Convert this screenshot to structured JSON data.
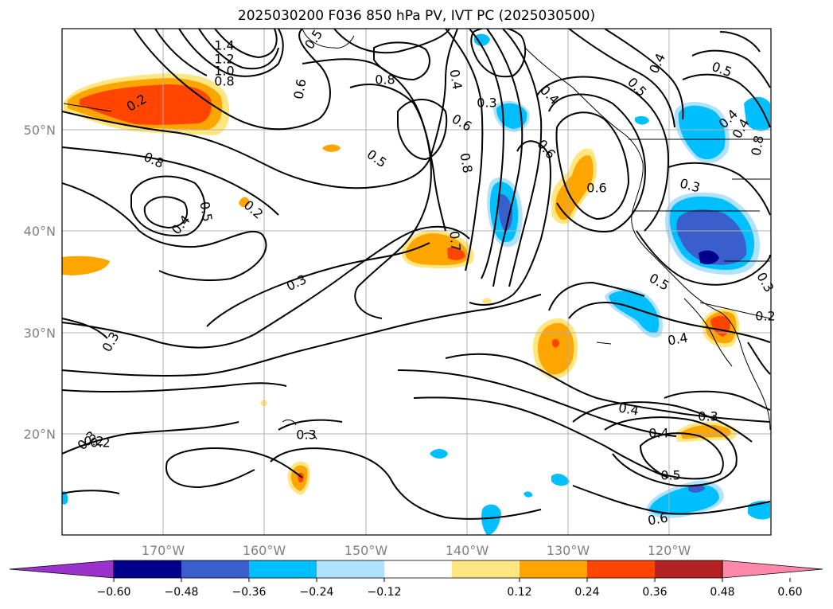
{
  "title": "2025030200 F036 850 hPa PV, IVT PC (2025030500)",
  "map": {
    "lat_labels": [
      "50°N",
      "40°N",
      "30°N",
      "20°N"
    ],
    "lon_labels": [
      "170°W",
      "160°W",
      "150°W",
      "140°W",
      "130°W",
      "120°W"
    ],
    "grid": true,
    "coastlines": true
  },
  "colorbar": {
    "orientation": "horizontal",
    "extend": "both",
    "ticks": [
      "−0.60",
      "−0.48",
      "−0.36",
      "−0.24",
      "−0.12",
      "0.12",
      "0.24",
      "0.36",
      "0.48",
      "0.60"
    ],
    "colors": [
      "#9933cc",
      "#00008b",
      "#3a5fcd",
      "#00bfff",
      "#b0e2ff",
      "#ffffff",
      "#ffe680",
      "#ffa500",
      "#ff4500",
      "#b22222",
      "#ff88aa"
    ]
  },
  "contour_labels": [
    "1.4",
    "1.2",
    "1.0",
    "0.8",
    "0.2",
    "0.5",
    "0.6",
    "0.8",
    "0.4",
    "0.3",
    "0.6",
    "0.8",
    "0.5",
    "0.4",
    "0.6",
    "0.5",
    "0.4",
    "0.6",
    "0.8",
    "0.3",
    "0.5",
    "0.4",
    "0.2",
    "0.5",
    "0.4",
    "0.4",
    "0.8",
    "0.5",
    "0.7",
    "0.3",
    "0.4",
    "0.3",
    "0.3",
    "0.4",
    "0.3",
    "0.4",
    "0.5",
    "0.3",
    "0.6",
    "0.3",
    "0.2",
    "0.2",
    "0.2"
  ]
}
